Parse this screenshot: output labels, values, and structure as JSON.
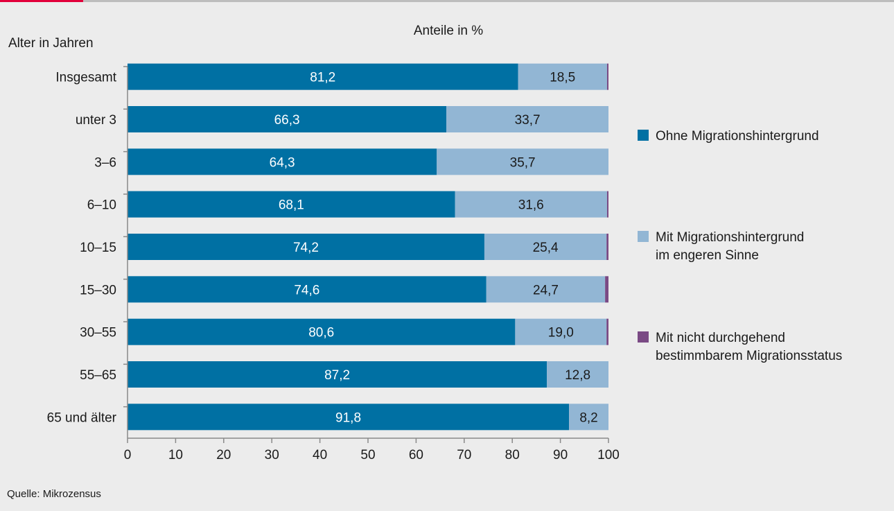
{
  "chart_data": {
    "type": "bar",
    "orientation": "horizontal",
    "stacked": true,
    "title": "Anteile in %",
    "ylabel": "Alter in Jahren",
    "source": "Quelle: Mikrozensus",
    "categories": [
      "Insgesamt",
      "unter 3",
      "3–6",
      "6–10",
      "10–15",
      "15–30",
      "30–55",
      "55–65",
      "65 und älter"
    ],
    "series": [
      {
        "name": "Ohne Migrationshintergrund",
        "color": "#0070a3",
        "values": [
          81.2,
          66.3,
          64.3,
          68.1,
          74.2,
          74.6,
          80.6,
          87.2,
          91.8
        ],
        "labels": [
          "81,2",
          "66,3",
          "64,3",
          "68,1",
          "74,2",
          "74,6",
          "80,6",
          "87,2",
          "91,8"
        ]
      },
      {
        "name": "Mit Migrationshintergrund im engeren Sinne",
        "name_lines": [
          "Mit Migrationshintergrund",
          "im engeren Sinne"
        ],
        "color": "#92b6d4",
        "values": [
          18.5,
          33.7,
          35.7,
          31.6,
          25.4,
          24.7,
          19.0,
          12.8,
          8.2
        ],
        "labels": [
          "18,5",
          "33,7",
          "35,7",
          "31,6",
          "25,4",
          "24,7",
          "19,0",
          "12,8",
          "8,2"
        ]
      },
      {
        "name": "Mit nicht durchgehend bestimmbarem Migrationsstatus",
        "name_lines": [
          "Mit nicht durchgehend",
          "bestimmbarem Migrationsstatus"
        ],
        "color": "#7a4a84",
        "values": [
          0.3,
          0.0,
          0.0,
          0.3,
          0.4,
          0.7,
          0.4,
          0.0,
          0.0
        ]
      }
    ],
    "xlim": [
      0,
      100
    ],
    "xticks": [
      0,
      10,
      20,
      30,
      40,
      50,
      60,
      70,
      80,
      90,
      100
    ],
    "grid": false,
    "legend_position": "right"
  }
}
